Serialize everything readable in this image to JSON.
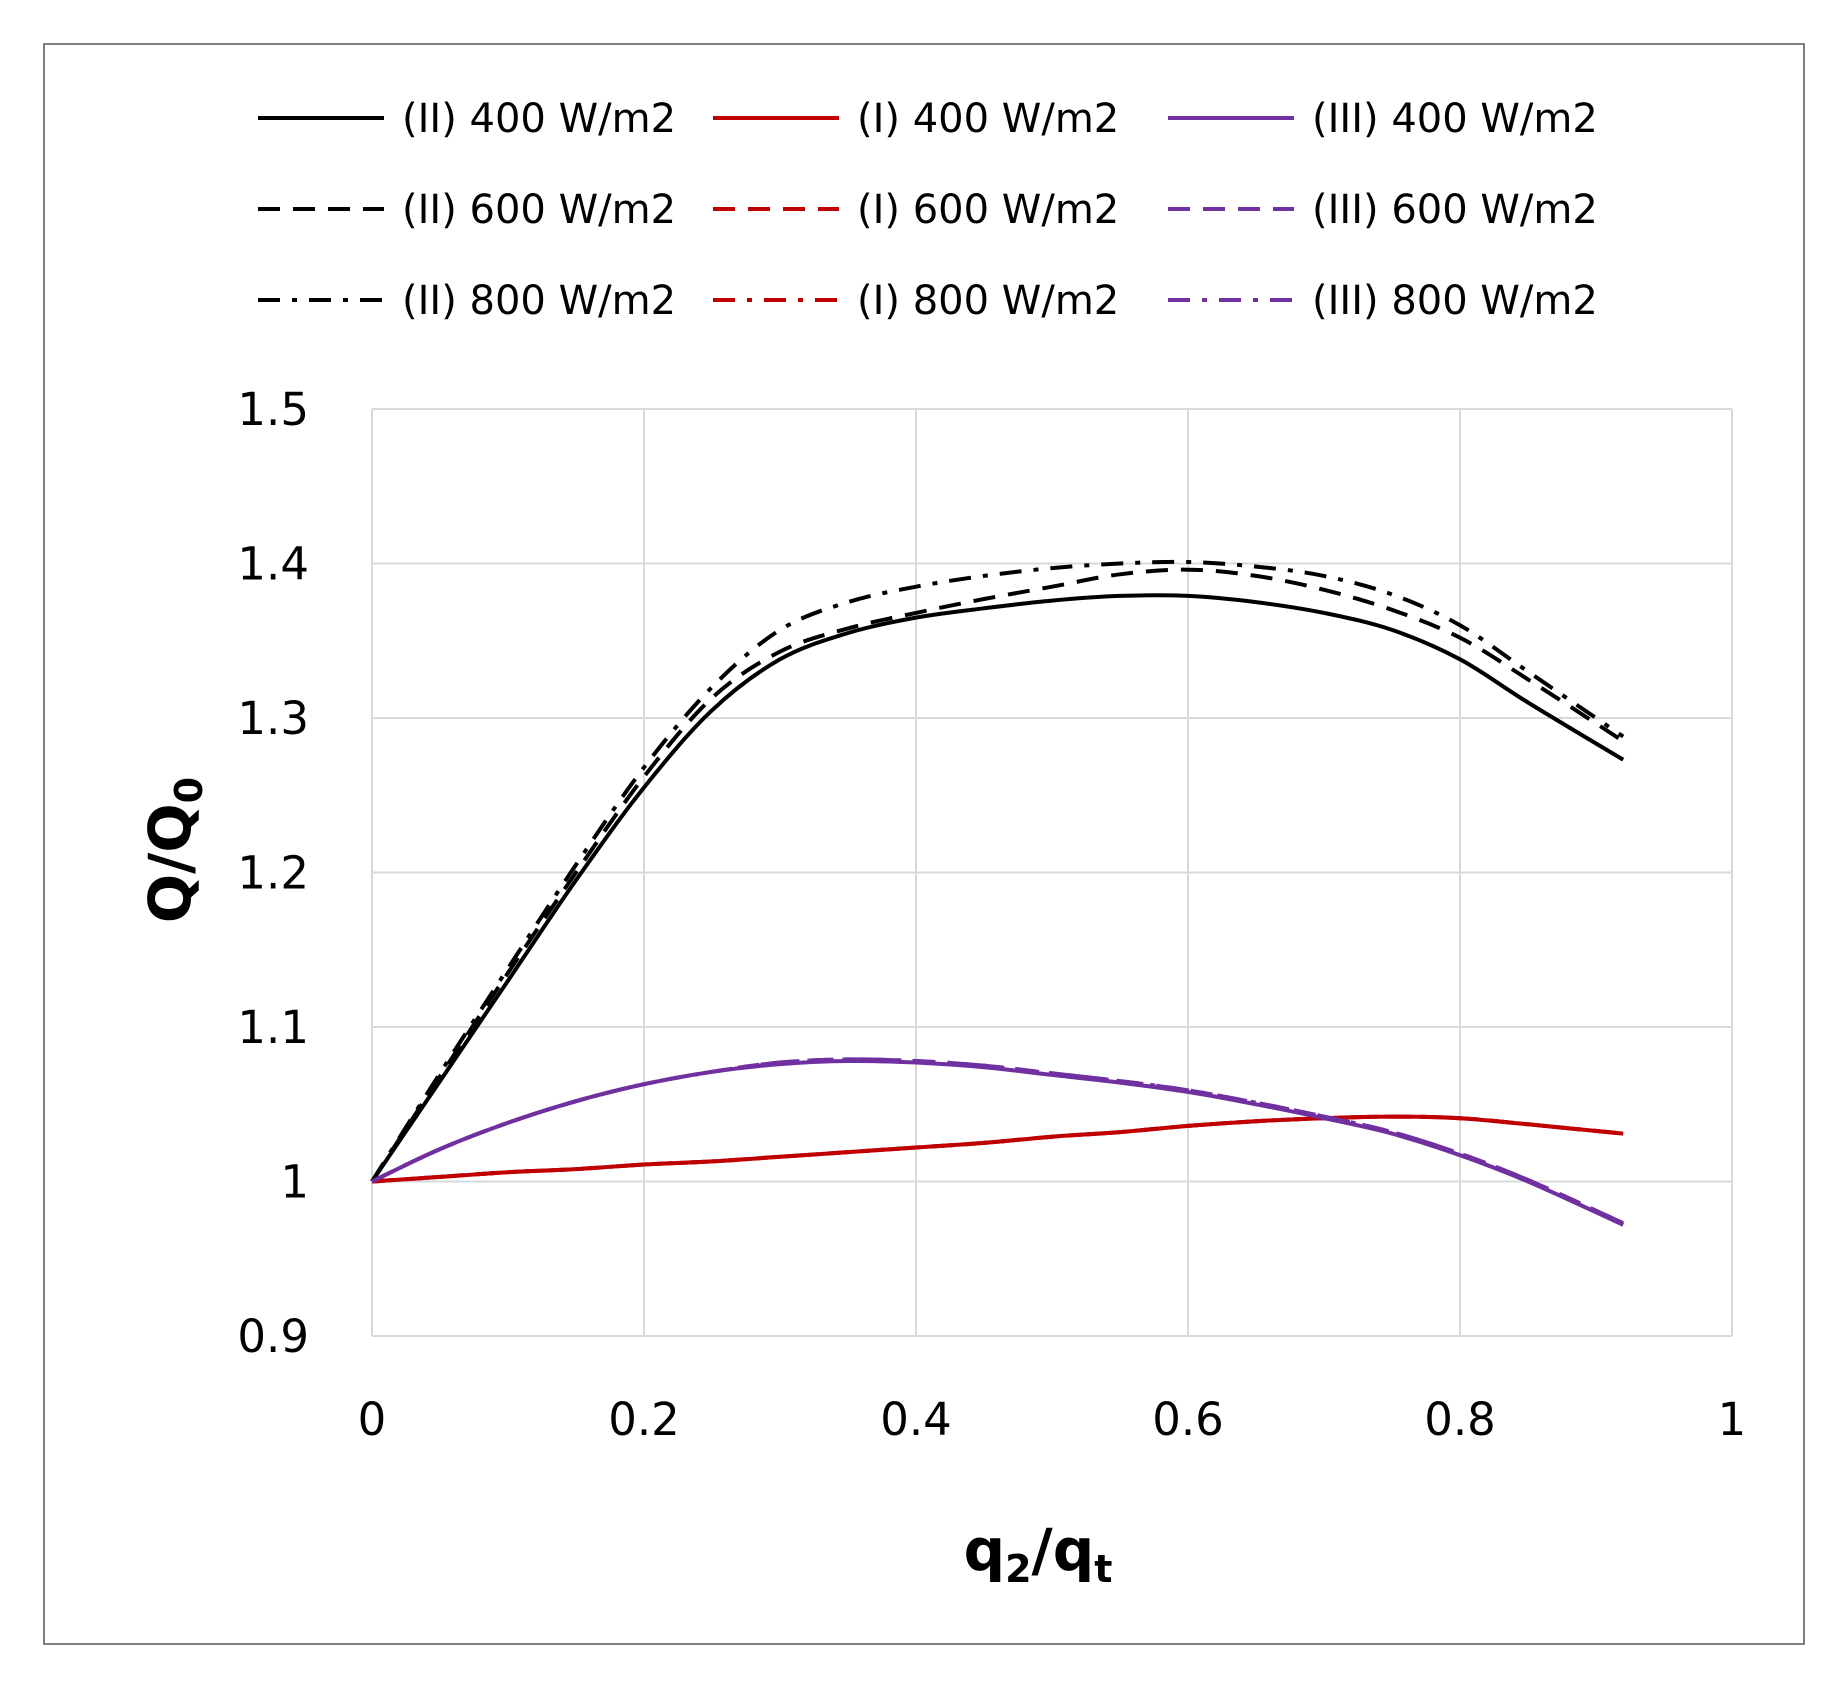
{
  "chart_data": {
    "type": "line",
    "title": "",
    "xlabel": "q2/qt",
    "xlabel_parts": {
      "base1": "q",
      "sub1": "2",
      "sep": "/",
      "base2": "q",
      "sub2": "t"
    },
    "ylabel": "Q/Q0",
    "ylabel_parts": {
      "base1": "Q/Q",
      "sub1": "0"
    },
    "xlim": [
      0,
      1
    ],
    "ylim": [
      0.9,
      1.5
    ],
    "x_ticks": [
      0,
      0.2,
      0.4,
      0.6,
      0.8,
      1
    ],
    "x_tick_labels": [
      "0",
      "0.2",
      "0.4",
      "0.6",
      "0.8",
      "1"
    ],
    "y_ticks": [
      0.9,
      1.0,
      1.1,
      1.2,
      1.3,
      1.4,
      1.5
    ],
    "y_tick_labels": [
      "0.9",
      "1",
      "1.1",
      "1.2",
      "1.3",
      "1.4",
      "1.5"
    ],
    "grid": true,
    "legend_position": "top",
    "x": [
      0,
      0.05,
      0.1,
      0.15,
      0.2,
      0.25,
      0.3,
      0.35,
      0.4,
      0.45,
      0.5,
      0.55,
      0.6,
      0.65,
      0.7,
      0.75,
      0.8,
      0.85,
      0.92
    ],
    "series": [
      {
        "name": "(II) 400 W/m2",
        "color": "#000000",
        "dash": "solid",
        "values": [
          1.0,
          1.065,
          1.13,
          1.195,
          1.255,
          1.305,
          1.338,
          1.355,
          1.365,
          1.371,
          1.376,
          1.379,
          1.379,
          1.375,
          1.368,
          1.357,
          1.338,
          1.31,
          1.273
        ]
      },
      {
        "name": "(II) 600 W/m2",
        "color": "#000000",
        "dash": "dashed",
        "values": [
          1.0,
          1.068,
          1.135,
          1.2,
          1.262,
          1.313,
          1.343,
          1.358,
          1.368,
          1.377,
          1.385,
          1.393,
          1.396,
          1.392,
          1.383,
          1.37,
          1.352,
          1.325,
          1.285
        ]
      },
      {
        "name": "(II) 800 W/m2",
        "color": "#000000",
        "dash": "dashdot",
        "values": [
          1.0,
          1.07,
          1.138,
          1.205,
          1.268,
          1.32,
          1.357,
          1.375,
          1.385,
          1.392,
          1.397,
          1.4,
          1.401,
          1.398,
          1.392,
          1.38,
          1.36,
          1.33,
          1.288
        ]
      },
      {
        "name": "(I) 400 W/m2",
        "color": "#c00000",
        "dash": "solid",
        "values": [
          1.0,
          1.003,
          1.006,
          1.008,
          1.011,
          1.013,
          1.016,
          1.019,
          1.022,
          1.025,
          1.029,
          1.032,
          1.036,
          1.039,
          1.041,
          1.042,
          1.041,
          1.037,
          1.031
        ]
      },
      {
        "name": "(I) 600 W/m2",
        "color": "#c00000",
        "dash": "dashed",
        "values": [
          1.0,
          1.003,
          1.006,
          1.008,
          1.011,
          1.013,
          1.016,
          1.019,
          1.022,
          1.025,
          1.029,
          1.032,
          1.036,
          1.039,
          1.041,
          1.042,
          1.041,
          1.037,
          1.031
        ]
      },
      {
        "name": "(I) 800 W/m2",
        "color": "#c00000",
        "dash": "dashdot",
        "values": [
          1.0,
          1.003,
          1.006,
          1.008,
          1.011,
          1.013,
          1.016,
          1.019,
          1.022,
          1.025,
          1.029,
          1.032,
          1.036,
          1.039,
          1.041,
          1.042,
          1.041,
          1.037,
          1.031
        ]
      },
      {
        "name": "(III) 400 W/m2",
        "color": "#7030a0",
        "dash": "solid",
        "values": [
          1.0,
          1.021,
          1.038,
          1.052,
          1.063,
          1.071,
          1.076,
          1.078,
          1.077,
          1.074,
          1.069,
          1.064,
          1.058,
          1.05,
          1.041,
          1.031,
          1.017,
          1.0,
          0.972
        ]
      },
      {
        "name": "(III) 600 W/m2",
        "color": "#7030a0",
        "dash": "dashed",
        "values": [
          1.0,
          1.021,
          1.038,
          1.052,
          1.063,
          1.071,
          1.077,
          1.079,
          1.078,
          1.075,
          1.07,
          1.065,
          1.059,
          1.051,
          1.042,
          1.032,
          1.018,
          1.001,
          0.973
        ]
      },
      {
        "name": "(III) 800 W/m2",
        "color": "#7030a0",
        "dash": "dashdot",
        "values": [
          1.0,
          1.021,
          1.038,
          1.052,
          1.063,
          1.071,
          1.077,
          1.079,
          1.078,
          1.075,
          1.07,
          1.065,
          1.059,
          1.051,
          1.042,
          1.032,
          1.018,
          1.001,
          0.973
        ]
      }
    ]
  }
}
